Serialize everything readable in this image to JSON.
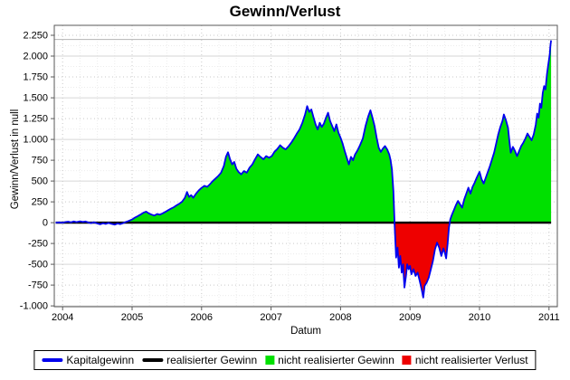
{
  "chart_data": {
    "type": "area",
    "title": "Gewinn/Verlust",
    "xlabel": "Datum",
    "ylabel": "Gewinn/Verlust in null",
    "xlim": [
      2003.88,
      2011.12
    ],
    "ylim": [
      -1010,
      2370
    ],
    "xticks": [
      2004,
      2005,
      2006,
      2007,
      2008,
      2009,
      2010,
      2011
    ],
    "yticks": [
      -1000,
      -750,
      -500,
      -250,
      0,
      250,
      500,
      750,
      1000,
      1250,
      1500,
      1750,
      2000,
      2250
    ],
    "ytick_labels": [
      "-1.000",
      "-750",
      "-500",
      "-250",
      "0",
      "250",
      "500",
      "750",
      "1.000",
      "1.250",
      "1.500",
      "1.750",
      "2.000",
      "2.250"
    ],
    "grid": true,
    "legend_position": "bottom",
    "marker_line_value": 2200,
    "colors": {
      "capital_line": "#0000ee",
      "realized_line": "#000000",
      "gain_area": "#00e000",
      "loss_area": "#ee0000",
      "grid_major_solid": "#d6d6d6",
      "grid_major_dashed": "#c9c9c9",
      "grid_minor": "#ececec",
      "marker_line": "#b4b4b4",
      "plot_border": "#5a5a5a"
    },
    "series": [
      {
        "name": "Kapitalgewinn",
        "type": "line",
        "color": "#0000ee",
        "points": [
          [
            2003.9,
            0
          ],
          [
            2003.95,
            3
          ],
          [
            2004.0,
            0
          ],
          [
            2004.04,
            7
          ],
          [
            2004.08,
            12
          ],
          [
            2004.12,
            4
          ],
          [
            2004.16,
            14
          ],
          [
            2004.2,
            6
          ],
          [
            2004.25,
            16
          ],
          [
            2004.29,
            8
          ],
          [
            2004.33,
            14
          ],
          [
            2004.37,
            2
          ],
          [
            2004.41,
            -6
          ],
          [
            2004.45,
            5
          ],
          [
            2004.5,
            -10
          ],
          [
            2004.54,
            -20
          ],
          [
            2004.58,
            -8
          ],
          [
            2004.62,
            -16
          ],
          [
            2004.66,
            -4
          ],
          [
            2004.7,
            -14
          ],
          [
            2004.75,
            -24
          ],
          [
            2004.79,
            -10
          ],
          [
            2004.83,
            -18
          ],
          [
            2004.87,
            -6
          ],
          [
            2004.91,
            8
          ],
          [
            2004.95,
            20
          ],
          [
            2005.0,
            38
          ],
          [
            2005.04,
            60
          ],
          [
            2005.08,
            78
          ],
          [
            2005.12,
            96
          ],
          [
            2005.16,
            118
          ],
          [
            2005.2,
            132
          ],
          [
            2005.24,
            112
          ],
          [
            2005.28,
            96
          ],
          [
            2005.32,
            86
          ],
          [
            2005.36,
            104
          ],
          [
            2005.4,
            96
          ],
          [
            2005.44,
            112
          ],
          [
            2005.48,
            130
          ],
          [
            2005.52,
            150
          ],
          [
            2005.56,
            168
          ],
          [
            2005.6,
            186
          ],
          [
            2005.64,
            208
          ],
          [
            2005.68,
            228
          ],
          [
            2005.72,
            252
          ],
          [
            2005.76,
            300
          ],
          [
            2005.79,
            368
          ],
          [
            2005.82,
            308
          ],
          [
            2005.85,
            330
          ],
          [
            2005.88,
            300
          ],
          [
            2005.92,
            348
          ],
          [
            2005.96,
            388
          ],
          [
            2006.0,
            418
          ],
          [
            2006.04,
            442
          ],
          [
            2006.08,
            430
          ],
          [
            2006.12,
            462
          ],
          [
            2006.16,
            498
          ],
          [
            2006.2,
            530
          ],
          [
            2006.24,
            560
          ],
          [
            2006.28,
            600
          ],
          [
            2006.32,
            680
          ],
          [
            2006.35,
            790
          ],
          [
            2006.38,
            845
          ],
          [
            2006.41,
            760
          ],
          [
            2006.44,
            700
          ],
          [
            2006.47,
            730
          ],
          [
            2006.5,
            650
          ],
          [
            2006.53,
            610
          ],
          [
            2006.57,
            580
          ],
          [
            2006.61,
            620
          ],
          [
            2006.65,
            600
          ],
          [
            2006.69,
            660
          ],
          [
            2006.73,
            700
          ],
          [
            2006.77,
            760
          ],
          [
            2006.81,
            820
          ],
          [
            2006.85,
            788
          ],
          [
            2006.89,
            760
          ],
          [
            2006.93,
            800
          ],
          [
            2006.97,
            780
          ],
          [
            2007.01,
            800
          ],
          [
            2007.05,
            852
          ],
          [
            2007.09,
            884
          ],
          [
            2007.13,
            930
          ],
          [
            2007.17,
            900
          ],
          [
            2007.21,
            880
          ],
          [
            2007.25,
            916
          ],
          [
            2007.29,
            960
          ],
          [
            2007.33,
            1010
          ],
          [
            2007.37,
            1068
          ],
          [
            2007.41,
            1120
          ],
          [
            2007.45,
            1200
          ],
          [
            2007.49,
            1300
          ],
          [
            2007.52,
            1400
          ],
          [
            2007.55,
            1330
          ],
          [
            2007.58,
            1360
          ],
          [
            2007.61,
            1270
          ],
          [
            2007.64,
            1180
          ],
          [
            2007.67,
            1120
          ],
          [
            2007.7,
            1200
          ],
          [
            2007.73,
            1150
          ],
          [
            2007.76,
            1190
          ],
          [
            2007.79,
            1260
          ],
          [
            2007.82,
            1320
          ],
          [
            2007.85,
            1220
          ],
          [
            2007.88,
            1160
          ],
          [
            2007.91,
            1100
          ],
          [
            2007.94,
            1180
          ],
          [
            2007.97,
            1080
          ],
          [
            2008.0,
            1020
          ],
          [
            2008.03,
            950
          ],
          [
            2008.06,
            860
          ],
          [
            2008.09,
            780
          ],
          [
            2008.12,
            700
          ],
          [
            2008.15,
            790
          ],
          [
            2008.18,
            750
          ],
          [
            2008.21,
            820
          ],
          [
            2008.24,
            860
          ],
          [
            2008.28,
            930
          ],
          [
            2008.32,
            1010
          ],
          [
            2008.36,
            1160
          ],
          [
            2008.4,
            1280
          ],
          [
            2008.43,
            1350
          ],
          [
            2008.46,
            1260
          ],
          [
            2008.49,
            1160
          ],
          [
            2008.52,
            1020
          ],
          [
            2008.55,
            900
          ],
          [
            2008.58,
            850
          ],
          [
            2008.61,
            890
          ],
          [
            2008.64,
            920
          ],
          [
            2008.67,
            880
          ],
          [
            2008.7,
            820
          ],
          [
            2008.72,
            750
          ],
          [
            2008.74,
            640
          ],
          [
            2008.76,
            380
          ],
          [
            2008.78,
            -60
          ],
          [
            2008.8,
            -420
          ],
          [
            2008.82,
            -300
          ],
          [
            2008.84,
            -540
          ],
          [
            2008.86,
            -400
          ],
          [
            2008.88,
            -600
          ],
          [
            2008.9,
            -500
          ],
          [
            2008.92,
            -780
          ],
          [
            2008.94,
            -650
          ],
          [
            2008.96,
            -500
          ],
          [
            2008.98,
            -560
          ],
          [
            2009.0,
            -520
          ],
          [
            2009.02,
            -620
          ],
          [
            2009.05,
            -560
          ],
          [
            2009.08,
            -640
          ],
          [
            2009.11,
            -600
          ],
          [
            2009.14,
            -700
          ],
          [
            2009.17,
            -810
          ],
          [
            2009.19,
            -900
          ],
          [
            2009.21,
            -760
          ],
          [
            2009.24,
            -720
          ],
          [
            2009.27,
            -660
          ],
          [
            2009.3,
            -560
          ],
          [
            2009.33,
            -460
          ],
          [
            2009.36,
            -320
          ],
          [
            2009.39,
            -240
          ],
          [
            2009.42,
            -300
          ],
          [
            2009.45,
            -400
          ],
          [
            2009.48,
            -310
          ],
          [
            2009.5,
            -360
          ],
          [
            2009.52,
            -430
          ],
          [
            2009.54,
            -260
          ],
          [
            2009.56,
            -60
          ],
          [
            2009.58,
            40
          ],
          [
            2009.6,
            90
          ],
          [
            2009.63,
            150
          ],
          [
            2009.66,
            210
          ],
          [
            2009.69,
            260
          ],
          [
            2009.72,
            220
          ],
          [
            2009.75,
            180
          ],
          [
            2009.78,
            280
          ],
          [
            2009.81,
            350
          ],
          [
            2009.84,
            420
          ],
          [
            2009.87,
            350
          ],
          [
            2009.9,
            430
          ],
          [
            2009.93,
            480
          ],
          [
            2009.96,
            540
          ],
          [
            2010.0,
            610
          ],
          [
            2010.03,
            520
          ],
          [
            2010.06,
            470
          ],
          [
            2010.09,
            540
          ],
          [
            2010.12,
            610
          ],
          [
            2010.15,
            680
          ],
          [
            2010.18,
            760
          ],
          [
            2010.21,
            840
          ],
          [
            2010.24,
            950
          ],
          [
            2010.27,
            1060
          ],
          [
            2010.3,
            1150
          ],
          [
            2010.33,
            1220
          ],
          [
            2010.35,
            1300
          ],
          [
            2010.38,
            1230
          ],
          [
            2010.41,
            1140
          ],
          [
            2010.43,
            980
          ],
          [
            2010.45,
            840
          ],
          [
            2010.48,
            910
          ],
          [
            2010.51,
            860
          ],
          [
            2010.54,
            800
          ],
          [
            2010.57,
            860
          ],
          [
            2010.6,
            920
          ],
          [
            2010.63,
            960
          ],
          [
            2010.66,
            1010
          ],
          [
            2010.69,
            1070
          ],
          [
            2010.72,
            1030
          ],
          [
            2010.75,
            990
          ],
          [
            2010.78,
            1060
          ],
          [
            2010.81,
            1180
          ],
          [
            2010.83,
            1310
          ],
          [
            2010.85,
            1260
          ],
          [
            2010.87,
            1430
          ],
          [
            2010.89,
            1380
          ],
          [
            2010.91,
            1560
          ],
          [
            2010.93,
            1640
          ],
          [
            2010.95,
            1600
          ],
          [
            2010.97,
            1780
          ],
          [
            2010.99,
            1900
          ],
          [
            2011.01,
            2020
          ],
          [
            2011.02,
            2120
          ],
          [
            2011.03,
            2190
          ]
        ]
      },
      {
        "name": "realisierter Gewinn",
        "type": "line",
        "color": "#000000",
        "points": [
          [
            2003.9,
            0
          ],
          [
            2011.03,
            0
          ]
        ]
      },
      {
        "name": "nicht realisierter Gewinn",
        "type": "area-positive",
        "color": "#00e000"
      },
      {
        "name": "nicht realisierter Verlust",
        "type": "area-negative",
        "color": "#ee0000"
      }
    ]
  },
  "legend": {
    "items": [
      {
        "label": "Kapitalgewinn",
        "swatch": "line",
        "color": "#0000ee"
      },
      {
        "label": "realisierter Gewinn",
        "swatch": "line",
        "color": "#000000"
      },
      {
        "label": "nicht realisierter Gewinn",
        "swatch": "square",
        "color": "#00e000"
      },
      {
        "label": "nicht realisierter Verlust",
        "swatch": "square",
        "color": "#ee0000"
      }
    ]
  }
}
